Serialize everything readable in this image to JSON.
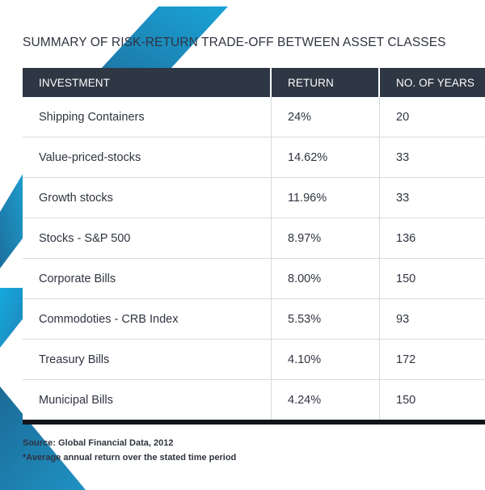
{
  "title": "SUMMARY OF RISK-RETURN TRADE-OFF BETWEEN ASSET CLASSES",
  "table": {
    "headers": [
      "INVESTMENT",
      "RETURN",
      "NO. OF YEARS"
    ],
    "rows": [
      [
        "Shipping Containers",
        "24%",
        "20"
      ],
      [
        "Value-priced-stocks",
        "14.62%",
        "33"
      ],
      [
        "Growth stocks",
        "11.96%",
        "33"
      ],
      [
        "Stocks - S&P 500",
        "8.97%",
        "136"
      ],
      [
        "Corporate Bills",
        "8.00%",
        "150"
      ],
      [
        "Commodoties - CRB Index",
        "5.53%",
        "93"
      ],
      [
        "Treasury Bills",
        "4.10%",
        "172"
      ],
      [
        "Municipal Bills",
        "4.24%",
        "150"
      ]
    ]
  },
  "footnotes": {
    "source": "Source: Global Financial Data, 2012",
    "note": "*Average annual return over the stated time period"
  },
  "colors": {
    "header_bg": "#2e3744",
    "accent_blue_dark": "#1c6f9e",
    "accent_blue_light": "#17a6d8"
  }
}
